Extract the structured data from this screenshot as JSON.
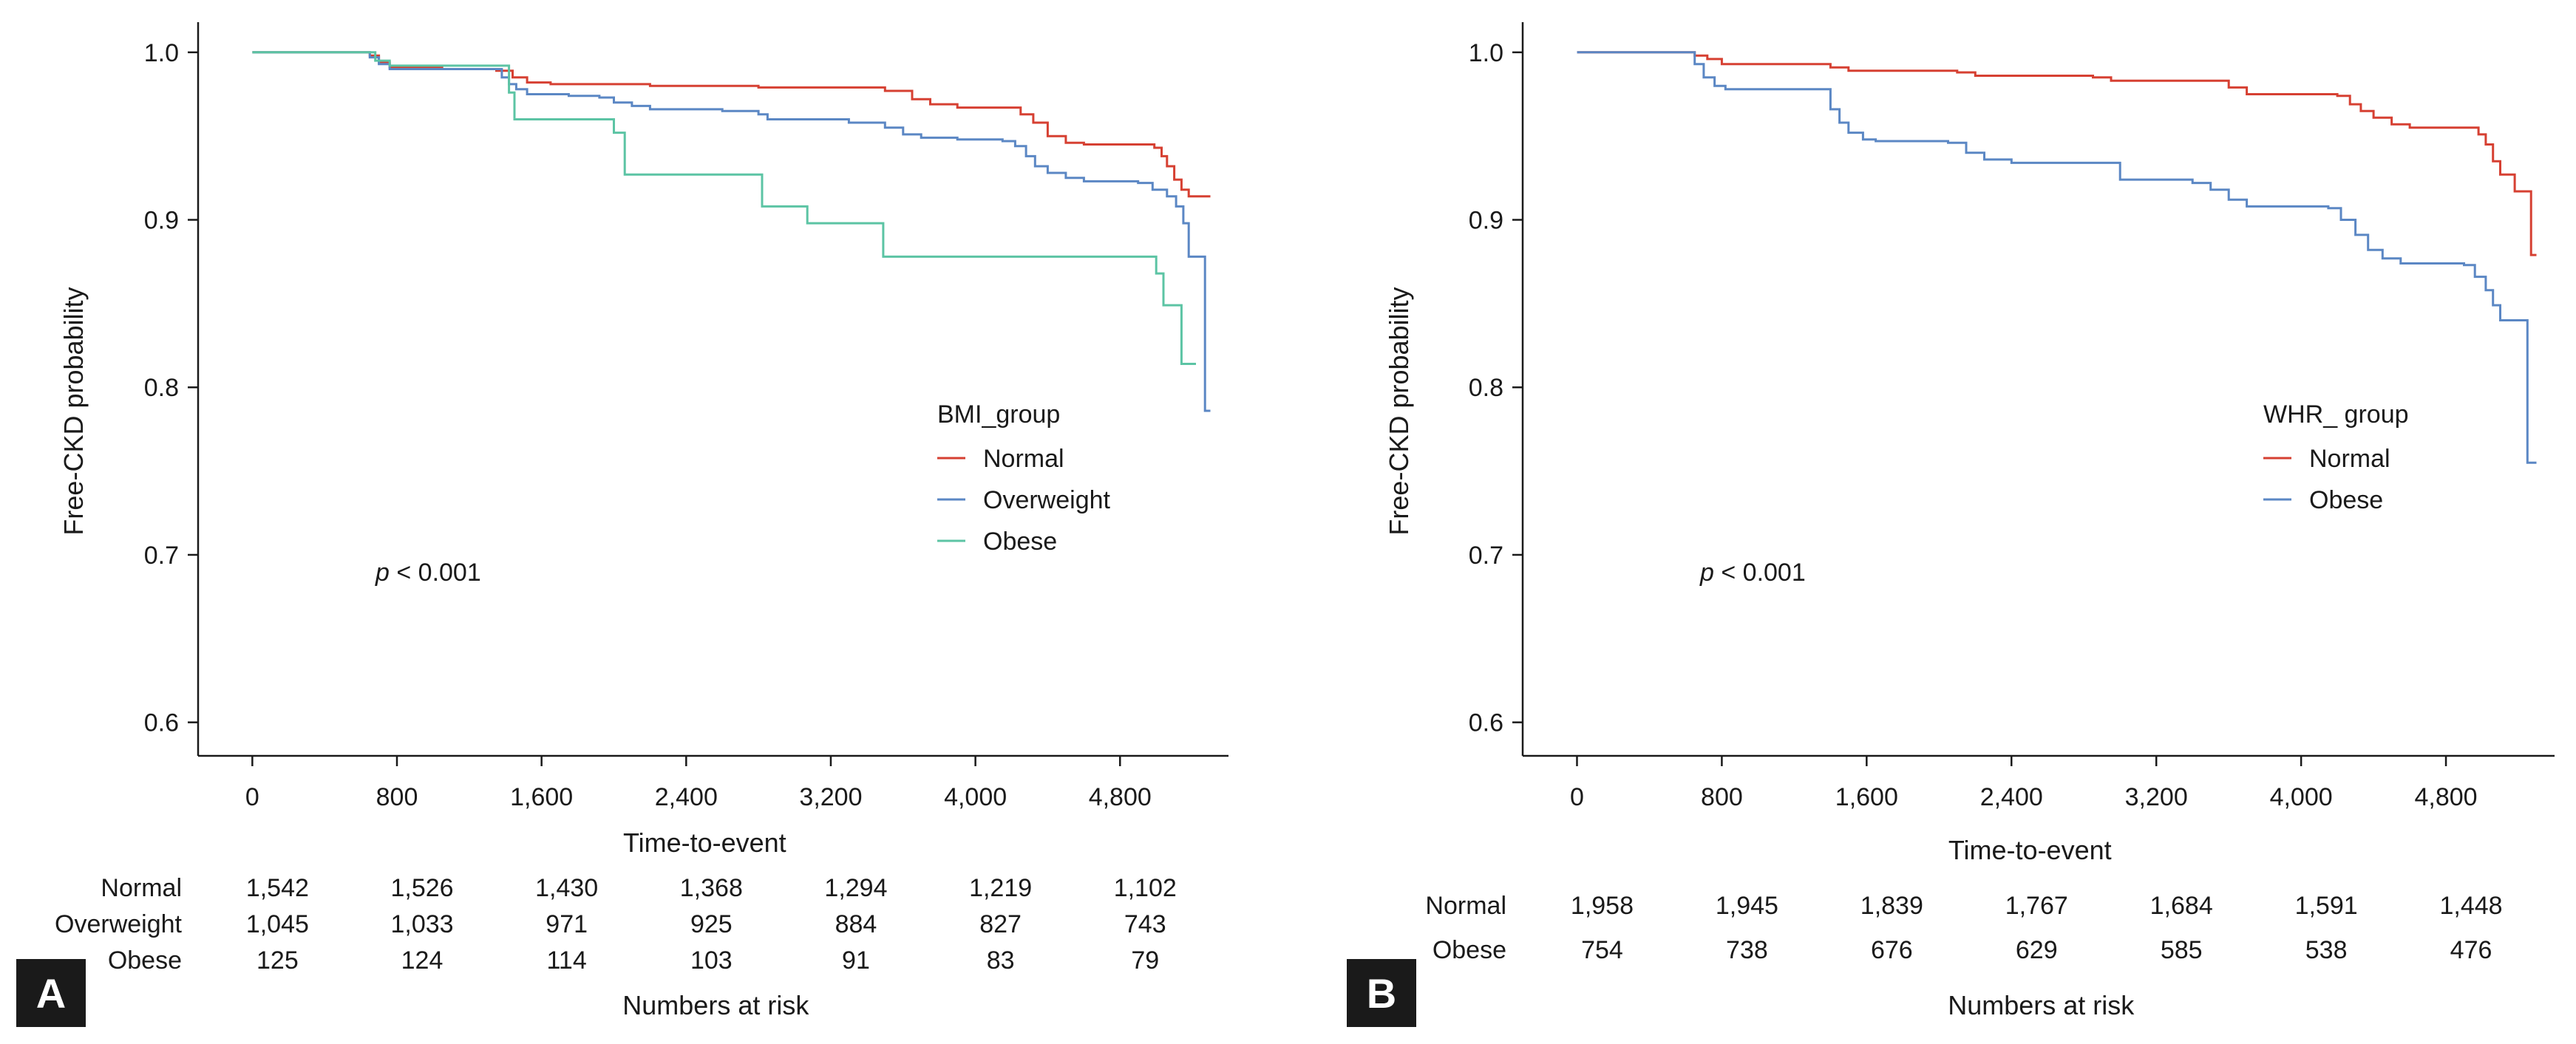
{
  "colors": {
    "normal": "#d64032",
    "overweight": "#5b87c4",
    "obese_bmi": "#5cc4a4",
    "obese_whr": "#5b87c4",
    "axis": "#1a1a1a",
    "panel_box": "#1a1a1a"
  },
  "chart_data": [
    {
      "type": "line",
      "subtype": "kaplan-meier step",
      "panel": "A",
      "xlabel": "Time-to-event",
      "ylabel": "Free-CKD probability",
      "xlim": [
        -300,
        5400
      ],
      "ylim": [
        0.58,
        1.018
      ],
      "x_ticks": [
        0,
        800,
        1600,
        2400,
        3200,
        4000,
        4800
      ],
      "x_tick_labels": [
        "0",
        "800",
        "1,600",
        "2,400",
        "3,200",
        "4,000",
        "4,800"
      ],
      "y_ticks": [
        0.6,
        0.7,
        0.8,
        0.9,
        1.0
      ],
      "y_tick_labels": [
        "0.6",
        "0.7",
        "0.8",
        "0.9",
        "1.0"
      ],
      "annotation": {
        "prefix": "p",
        "text": "< 0.001"
      },
      "legend_title": "BMI_group",
      "series": [
        {
          "name": "Normal",
          "color_key": "normal",
          "points": [
            [
              0,
              1.0
            ],
            [
              580,
              1.0
            ],
            [
              650,
              0.998
            ],
            [
              700,
              0.994
            ],
            [
              760,
              0.991
            ],
            [
              1050,
              0.99
            ],
            [
              1350,
              0.989
            ],
            [
              1440,
              0.985
            ],
            [
              1520,
              0.982
            ],
            [
              1650,
              0.981
            ],
            [
              2200,
              0.98
            ],
            [
              2800,
              0.979
            ],
            [
              3500,
              0.977
            ],
            [
              3650,
              0.972
            ],
            [
              3750,
              0.969
            ],
            [
              3900,
              0.967
            ],
            [
              4150,
              0.967
            ],
            [
              4250,
              0.963
            ],
            [
              4320,
              0.958
            ],
            [
              4400,
              0.95
            ],
            [
              4500,
              0.946
            ],
            [
              4600,
              0.945
            ],
            [
              4900,
              0.945
            ],
            [
              4990,
              0.943
            ],
            [
              5030,
              0.938
            ],
            [
              5060,
              0.932
            ],
            [
              5100,
              0.924
            ],
            [
              5140,
              0.918
            ],
            [
              5180,
              0.914
            ],
            [
              5300,
              0.914
            ]
          ]
        },
        {
          "name": "Overweight",
          "color_key": "overweight",
          "points": [
            [
              0,
              1.0
            ],
            [
              600,
              1.0
            ],
            [
              650,
              0.997
            ],
            [
              700,
              0.993
            ],
            [
              760,
              0.99
            ],
            [
              1300,
              0.99
            ],
            [
              1380,
              0.985
            ],
            [
              1420,
              0.981
            ],
            [
              1460,
              0.978
            ],
            [
              1520,
              0.975
            ],
            [
              1750,
              0.974
            ],
            [
              1920,
              0.973
            ],
            [
              2000,
              0.97
            ],
            [
              2100,
              0.968
            ],
            [
              2200,
              0.966
            ],
            [
              2600,
              0.965
            ],
            [
              2800,
              0.963
            ],
            [
              2850,
              0.96
            ],
            [
              3300,
              0.958
            ],
            [
              3500,
              0.955
            ],
            [
              3600,
              0.951
            ],
            [
              3700,
              0.949
            ],
            [
              3900,
              0.948
            ],
            [
              4150,
              0.947
            ],
            [
              4220,
              0.944
            ],
            [
              4280,
              0.938
            ],
            [
              4330,
              0.932
            ],
            [
              4400,
              0.928
            ],
            [
              4500,
              0.925
            ],
            [
              4600,
              0.923
            ],
            [
              4900,
              0.922
            ],
            [
              4980,
              0.918
            ],
            [
              5060,
              0.914
            ],
            [
              5110,
              0.908
            ],
            [
              5150,
              0.898
            ],
            [
              5180,
              0.878
            ],
            [
              5250,
              0.878
            ],
            [
              5270,
              0.786
            ],
            [
              5300,
              0.786
            ]
          ]
        },
        {
          "name": "Obese",
          "color_key": "obese_bmi",
          "points": [
            [
              0,
              1.0
            ],
            [
              600,
              1.0
            ],
            [
              680,
              0.995
            ],
            [
              760,
              0.992
            ],
            [
              1400,
              0.992
            ],
            [
              1420,
              0.976
            ],
            [
              1450,
              0.96
            ],
            [
              1980,
              0.96
            ],
            [
              2000,
              0.952
            ],
            [
              2060,
              0.927
            ],
            [
              2800,
              0.927
            ],
            [
              2820,
              0.908
            ],
            [
              3050,
              0.908
            ],
            [
              3070,
              0.898
            ],
            [
              3470,
              0.898
            ],
            [
              3490,
              0.878
            ],
            [
              4980,
              0.878
            ],
            [
              5000,
              0.868
            ],
            [
              5040,
              0.849
            ],
            [
              5120,
              0.849
            ],
            [
              5140,
              0.814
            ],
            [
              5220,
              0.814
            ]
          ]
        }
      ],
      "risk_table": {
        "title": "Numbers at risk",
        "rows": [
          {
            "label": "Normal",
            "values": [
              "1,542",
              "1,526",
              "1,430",
              "1,368",
              "1,294",
              "1,219",
              "1,102"
            ]
          },
          {
            "label": "Overweight",
            "values": [
              "1,045",
              "1,033",
              "971",
              "925",
              "884",
              "827",
              "743"
            ]
          },
          {
            "label": "Obese",
            "values": [
              "125",
              "124",
              "114",
              "103",
              "91",
              "83",
              "79"
            ]
          }
        ]
      }
    },
    {
      "type": "line",
      "subtype": "kaplan-meier step",
      "panel": "B",
      "xlabel": "Time-to-event",
      "ylabel": "Free-CKD probability",
      "xlim": [
        -300,
        5400
      ],
      "ylim": [
        0.58,
        1.018
      ],
      "x_ticks": [
        0,
        800,
        1600,
        2400,
        3200,
        4000,
        4800
      ],
      "x_tick_labels": [
        "0",
        "800",
        "1,600",
        "2,400",
        "3,200",
        "4,000",
        "4,800"
      ],
      "y_ticks": [
        0.6,
        0.7,
        0.8,
        0.9,
        1.0
      ],
      "y_tick_labels": [
        "0.6",
        "0.7",
        "0.8",
        "0.9",
        "1.0"
      ],
      "annotation": {
        "prefix": "p",
        "text": "< 0.001"
      },
      "legend_title": "WHR_ group",
      "series": [
        {
          "name": "Normal",
          "color_key": "normal",
          "points": [
            [
              0,
              1.0
            ],
            [
              580,
              1.0
            ],
            [
              650,
              0.998
            ],
            [
              720,
              0.996
            ],
            [
              800,
              0.993
            ],
            [
              1400,
              0.991
            ],
            [
              1500,
              0.989
            ],
            [
              2100,
              0.988
            ],
            [
              2200,
              0.986
            ],
            [
              2850,
              0.985
            ],
            [
              2950,
              0.983
            ],
            [
              3500,
              0.983
            ],
            [
              3600,
              0.979
            ],
            [
              3700,
              0.975
            ],
            [
              4200,
              0.974
            ],
            [
              4270,
              0.969
            ],
            [
              4330,
              0.965
            ],
            [
              4400,
              0.961
            ],
            [
              4500,
              0.957
            ],
            [
              4600,
              0.955
            ],
            [
              4900,
              0.955
            ],
            [
              4980,
              0.951
            ],
            [
              5020,
              0.945
            ],
            [
              5060,
              0.935
            ],
            [
              5100,
              0.927
            ],
            [
              5140,
              0.927
            ],
            [
              5180,
              0.917
            ],
            [
              5250,
              0.917
            ],
            [
              5270,
              0.879
            ],
            [
              5300,
              0.879
            ]
          ]
        },
        {
          "name": "Obese",
          "color_key": "obese_whr",
          "points": [
            [
              0,
              1.0
            ],
            [
              600,
              1.0
            ],
            [
              650,
              0.993
            ],
            [
              700,
              0.985
            ],
            [
              760,
              0.98
            ],
            [
              820,
              0.978
            ],
            [
              1350,
              0.978
            ],
            [
              1400,
              0.966
            ],
            [
              1450,
              0.958
            ],
            [
              1500,
              0.952
            ],
            [
              1580,
              0.948
            ],
            [
              1650,
              0.947
            ],
            [
              2050,
              0.946
            ],
            [
              2150,
              0.94
            ],
            [
              2250,
              0.936
            ],
            [
              2400,
              0.934
            ],
            [
              2950,
              0.934
            ],
            [
              3000,
              0.924
            ],
            [
              3400,
              0.922
            ],
            [
              3500,
              0.918
            ],
            [
              3600,
              0.912
            ],
            [
              3700,
              0.908
            ],
            [
              4150,
              0.907
            ],
            [
              4220,
              0.9
            ],
            [
              4300,
              0.891
            ],
            [
              4370,
              0.882
            ],
            [
              4450,
              0.877
            ],
            [
              4550,
              0.874
            ],
            [
              4900,
              0.873
            ],
            [
              4960,
              0.866
            ],
            [
              5020,
              0.858
            ],
            [
              5060,
              0.849
            ],
            [
              5100,
              0.84
            ],
            [
              5230,
              0.84
            ],
            [
              5250,
              0.755
            ],
            [
              5300,
              0.755
            ]
          ]
        }
      ],
      "risk_table": {
        "title": "Numbers at risk",
        "rows": [
          {
            "label": "Normal",
            "values": [
              "1,958",
              "1,945",
              "1,839",
              "1,767",
              "1,684",
              "1,591",
              "1,448"
            ]
          },
          {
            "label": "Obese",
            "values": [
              "754",
              "738",
              "676",
              "629",
              "585",
              "538",
              "476"
            ]
          }
        ]
      }
    }
  ]
}
